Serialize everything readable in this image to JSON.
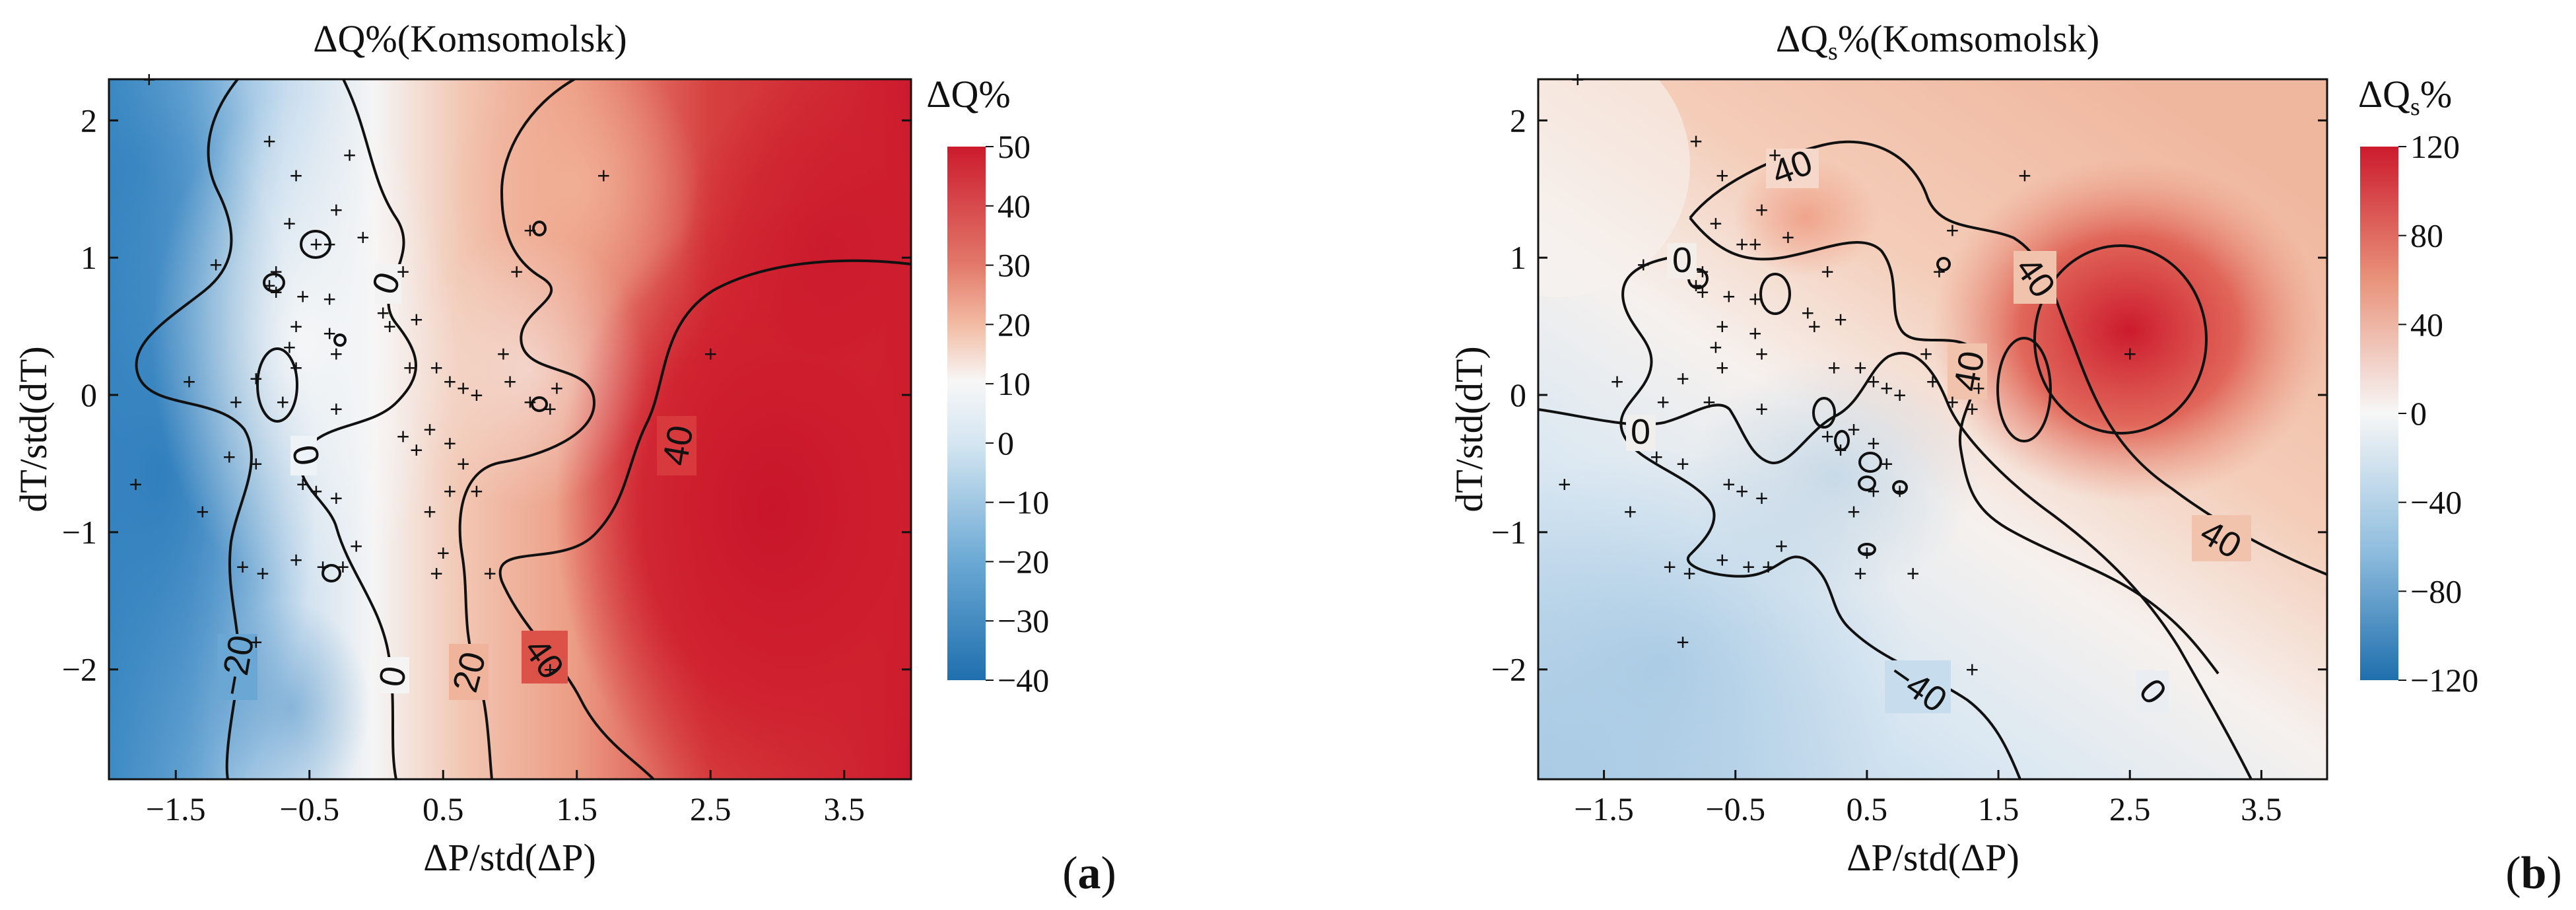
{
  "chart_data": [
    {
      "type": "heatmap",
      "panel": "(a)",
      "title": "ΔQ%(Komsomolsk)",
      "xlabel": "ΔP/std(ΔP)",
      "ylabel": "dT/std(dT)",
      "xticks": [
        "−1.5",
        "−0.5",
        "0.5",
        "1.5",
        "2.5",
        "3.5"
      ],
      "xtick_values": [
        -1.5,
        -0.5,
        0.5,
        1.5,
        2.5,
        3.5
      ],
      "yticks": [
        "2",
        "1",
        "0",
        "−1",
        "−2"
      ],
      "ytick_values": [
        2,
        1,
        0,
        -1,
        -2
      ],
      "xlim": [
        -2.0,
        4.0
      ],
      "ylim": [
        -2.8,
        2.3
      ],
      "colorbar": {
        "label": "ΔQ%",
        "min": -40,
        "max": 50,
        "ticks": [
          50,
          40,
          30,
          20,
          10,
          0,
          -10,
          -20,
          -30,
          -40
        ],
        "tick_labels": [
          "50",
          "40",
          "30",
          "20",
          "10",
          "0",
          "−10",
          "−20",
          "−30",
          "−40"
        ]
      },
      "contour_labels": [
        {
          "text": "0",
          "x": -0.4,
          "y": 0.8
        },
        {
          "text": "0",
          "x": -0.8,
          "y": -0.4
        },
        {
          "text": "40",
          "x": 2.3,
          "y": -0.4
        },
        {
          "text": "−20",
          "x": -1.1,
          "y": -2.0
        },
        {
          "text": "0",
          "x": 0.1,
          "y": -2.0
        },
        {
          "text": "20",
          "x": 0.6,
          "y": -2.0
        },
        {
          "text": "40",
          "x": 1.2,
          "y": -1.95
        }
      ],
      "observations": [
        [
          -1.7,
          2.3
        ],
        [
          -0.8,
          1.85
        ],
        [
          -0.6,
          1.6
        ],
        [
          -0.2,
          1.75
        ],
        [
          -0.3,
          1.35
        ],
        [
          -0.65,
          1.25
        ],
        [
          -0.45,
          1.1
        ],
        [
          -0.35,
          1.1
        ],
        [
          -0.1,
          1.15
        ],
        [
          -1.2,
          0.95
        ],
        [
          -0.75,
          0.9
        ],
        [
          -0.8,
          0.8
        ],
        [
          -0.75,
          0.75
        ],
        [
          -0.55,
          0.72
        ],
        [
          -0.35,
          0.7
        ],
        [
          -0.6,
          0.5
        ],
        [
          -0.35,
          0.45
        ],
        [
          -0.65,
          0.35
        ],
        [
          -1.4,
          0.1
        ],
        [
          -0.6,
          0.2
        ],
        [
          -0.9,
          0.12
        ],
        [
          -0.3,
          0.3
        ],
        [
          -1.05,
          -0.05
        ],
        [
          -0.7,
          -0.05
        ],
        [
          -0.3,
          -0.1
        ],
        [
          -1.1,
          -0.45
        ],
        [
          -0.9,
          -0.5
        ],
        [
          -1.8,
          -0.65
        ],
        [
          -1.3,
          -0.85
        ],
        [
          -0.45,
          -0.7
        ],
        [
          -0.55,
          -0.65
        ],
        [
          -0.3,
          -0.75
        ],
        [
          -0.6,
          -1.2
        ],
        [
          -0.25,
          -1.25
        ],
        [
          -0.4,
          -1.25
        ],
        [
          -0.15,
          -1.1
        ],
        [
          -1.0,
          -1.25
        ],
        [
          -0.85,
          -1.3
        ],
        [
          -0.9,
          -1.8
        ],
        [
          0.2,
          0.9
        ],
        [
          0.1,
          0.5
        ],
        [
          0.45,
          0.2
        ],
        [
          0.55,
          0.1
        ],
        [
          0.65,
          0.05
        ],
        [
          0.75,
          0.0
        ],
        [
          0.4,
          -0.25
        ],
        [
          0.55,
          -0.35
        ],
        [
          0.65,
          -0.5
        ],
        [
          0.55,
          -0.7
        ],
        [
          0.75,
          -0.7
        ],
        [
          0.4,
          -0.85
        ],
        [
          0.5,
          -1.15
        ],
        [
          0.45,
          -1.3
        ],
        [
          0.85,
          -1.3
        ],
        [
          0.95,
          0.3
        ],
        [
          1.0,
          0.1
        ],
        [
          1.15,
          -0.05
        ],
        [
          1.05,
          0.9
        ],
        [
          1.15,
          1.2
        ],
        [
          1.7,
          1.6
        ],
        [
          1.35,
          0.05
        ],
        [
          1.3,
          -0.1
        ],
        [
          0.3,
          0.55
        ],
        [
          0.25,
          0.2
        ],
        [
          0.2,
          -0.3
        ],
        [
          0.3,
          -0.4
        ],
        [
          0.05,
          0.6
        ],
        [
          2.5,
          0.3
        ],
        [
          1.3,
          -2.0
        ]
      ]
    },
    {
      "type": "heatmap",
      "panel": "(b)",
      "title": "ΔQs%(Komsomolsk)",
      "title_main": "ΔQ",
      "title_sub": "s",
      "title_rest": "%(Komsomolsk)",
      "xlabel": "ΔP/std(ΔP)",
      "ylabel": "dT/std(dT)",
      "xticks": [
        "−1.5",
        "−0.5",
        "0.5",
        "1.5",
        "2.5",
        "3.5"
      ],
      "xtick_values": [
        -1.5,
        -0.5,
        0.5,
        1.5,
        2.5,
        3.5
      ],
      "yticks": [
        "2",
        "1",
        "0",
        "−1",
        "−2"
      ],
      "ytick_values": [
        2,
        1,
        0,
        -1,
        -2
      ],
      "xlim": [
        -2.0,
        4.0
      ],
      "ylim": [
        -2.8,
        2.3
      ],
      "colorbar": {
        "label": "ΔQs%",
        "label_main": "ΔQ",
        "label_sub": "s",
        "label_rest": "%",
        "min": -120,
        "max": 120,
        "ticks": [
          120,
          80,
          40,
          0,
          -40,
          -80,
          -120
        ],
        "tick_labels": [
          "120",
          "80",
          "40",
          "0",
          "−40",
          "−80",
          "−120"
        ]
      },
      "contour_labels": [
        {
          "text": "40",
          "x": -0.05,
          "y": 1.65
        },
        {
          "text": "0",
          "x": -1.0,
          "y": 0.95
        },
        {
          "text": "40",
          "x": 1.3,
          "y": 0.9
        },
        {
          "text": "40",
          "x": 1.0,
          "y": 0.1
        },
        {
          "text": "0",
          "x": -1.3,
          "y": -0.3
        },
        {
          "text": "40",
          "x": 3.2,
          "y": -1.1
        },
        {
          "text": "−40",
          "x": 0.8,
          "y": -2.2
        },
        {
          "text": "0",
          "x": 2.7,
          "y": -2.2
        }
      ],
      "observations": [
        [
          -1.7,
          2.3
        ],
        [
          -0.8,
          1.85
        ],
        [
          -0.6,
          1.6
        ],
        [
          -0.2,
          1.75
        ],
        [
          -0.3,
          1.35
        ],
        [
          -0.65,
          1.25
        ],
        [
          -0.45,
          1.1
        ],
        [
          -0.35,
          1.1
        ],
        [
          -0.1,
          1.15
        ],
        [
          -1.2,
          0.95
        ],
        [
          -0.75,
          0.9
        ],
        [
          -0.8,
          0.8
        ],
        [
          -0.75,
          0.75
        ],
        [
          -0.55,
          0.72
        ],
        [
          -0.35,
          0.7
        ],
        [
          -0.6,
          0.5
        ],
        [
          -0.35,
          0.45
        ],
        [
          -0.65,
          0.35
        ],
        [
          -1.4,
          0.1
        ],
        [
          -0.6,
          0.2
        ],
        [
          -0.9,
          0.12
        ],
        [
          -0.3,
          0.3
        ],
        [
          -1.05,
          -0.05
        ],
        [
          -0.7,
          -0.05
        ],
        [
          -0.3,
          -0.1
        ],
        [
          -1.1,
          -0.45
        ],
        [
          -0.9,
          -0.5
        ],
        [
          -1.8,
          -0.65
        ],
        [
          -1.3,
          -0.85
        ],
        [
          -0.45,
          -0.7
        ],
        [
          -0.55,
          -0.65
        ],
        [
          -0.3,
          -0.75
        ],
        [
          -0.6,
          -1.2
        ],
        [
          -0.25,
          -1.25
        ],
        [
          -0.4,
          -1.25
        ],
        [
          -0.15,
          -1.1
        ],
        [
          -1.0,
          -1.25
        ],
        [
          -0.85,
          -1.3
        ],
        [
          -0.9,
          -1.8
        ],
        [
          0.2,
          0.9
        ],
        [
          0.1,
          0.5
        ],
        [
          0.45,
          0.2
        ],
        [
          0.55,
          0.1
        ],
        [
          0.65,
          0.05
        ],
        [
          0.75,
          0.0
        ],
        [
          0.4,
          -0.25
        ],
        [
          0.55,
          -0.35
        ],
        [
          0.65,
          -0.5
        ],
        [
          0.55,
          -0.7
        ],
        [
          0.75,
          -0.7
        ],
        [
          0.4,
          -0.85
        ],
        [
          0.5,
          -1.15
        ],
        [
          0.45,
          -1.3
        ],
        [
          0.85,
          -1.3
        ],
        [
          0.95,
          0.3
        ],
        [
          1.0,
          0.1
        ],
        [
          1.15,
          -0.05
        ],
        [
          1.05,
          0.9
        ],
        [
          1.15,
          1.2
        ],
        [
          1.7,
          1.6
        ],
        [
          1.35,
          0.05
        ],
        [
          1.3,
          -0.1
        ],
        [
          0.3,
          0.55
        ],
        [
          0.25,
          0.2
        ],
        [
          0.2,
          -0.3
        ],
        [
          0.3,
          -0.4
        ],
        [
          0.05,
          0.6
        ],
        [
          2.5,
          0.3
        ],
        [
          1.3,
          -2.0
        ]
      ]
    }
  ],
  "colors": {
    "cmap_low": "#2b7bb9",
    "cmap_mid": "#f7f7f7",
    "cmap_high": "#cf1f2e"
  }
}
